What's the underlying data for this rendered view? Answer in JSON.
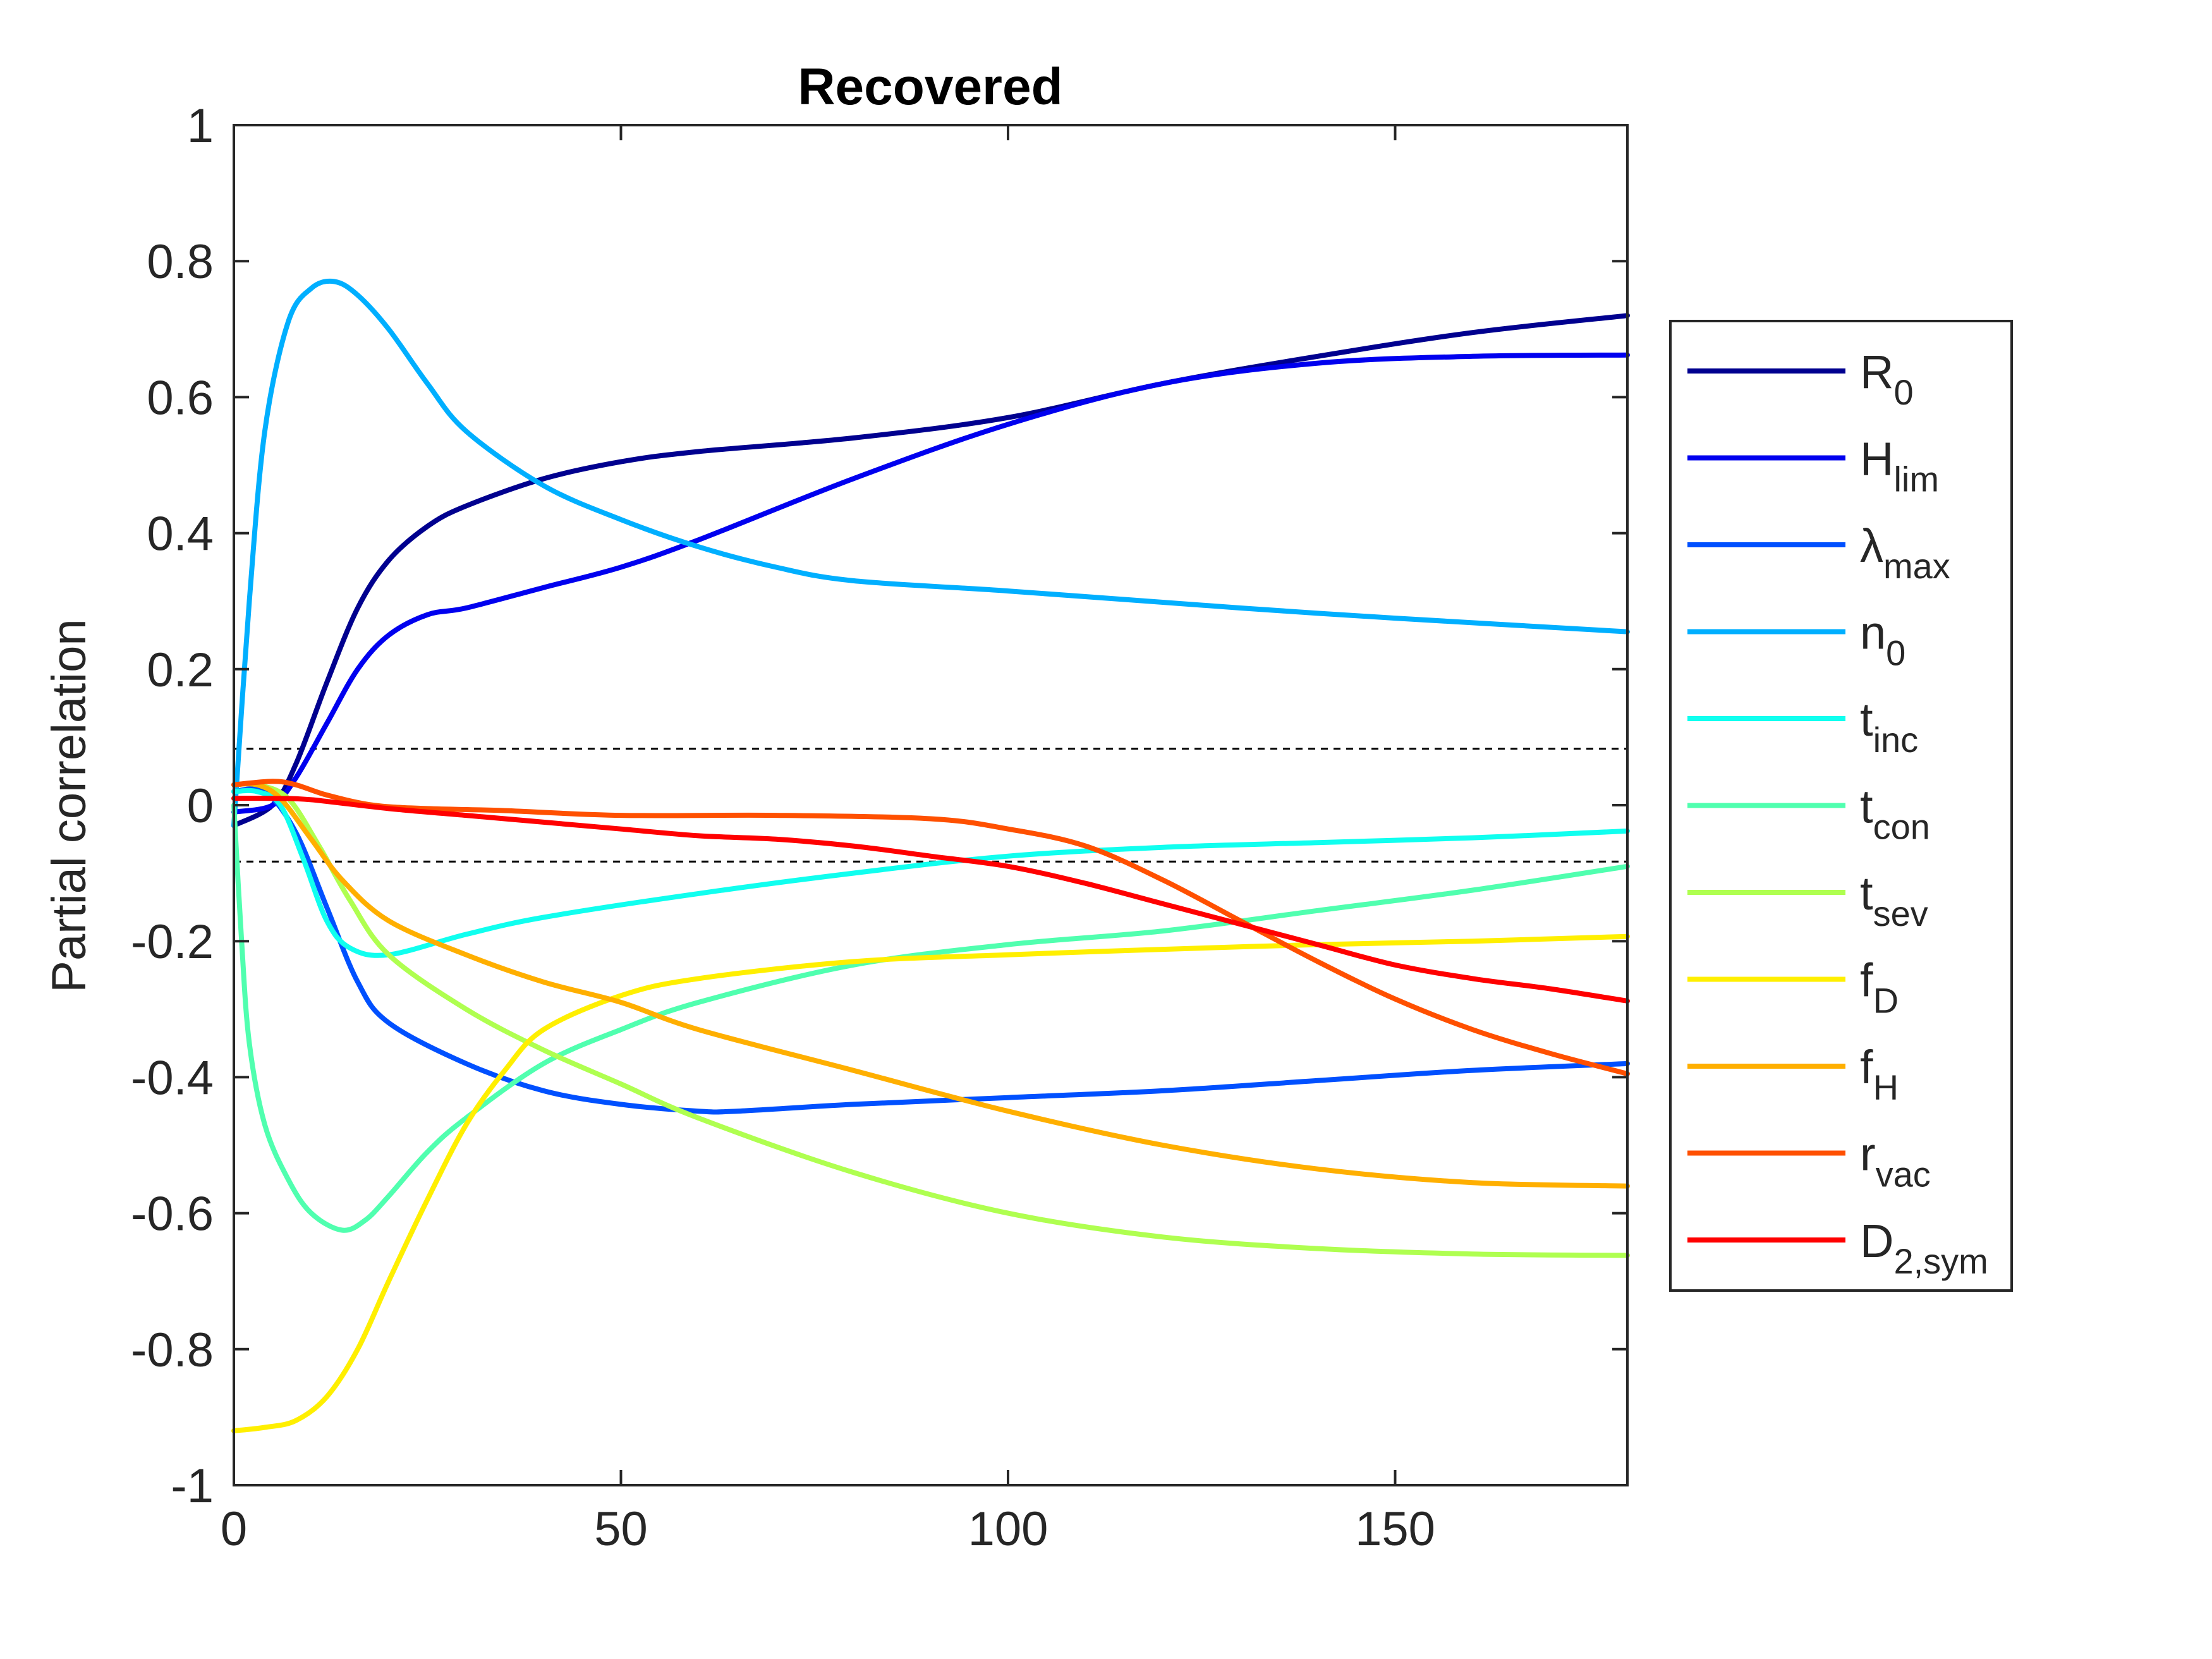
{
  "chart_data": {
    "type": "line",
    "title": "Recovered",
    "xlabel": "",
    "ylabel": "Partial correlation",
    "xlim": [
      0,
      180
    ],
    "ylim": [
      -1,
      1
    ],
    "xticks": [
      0,
      50,
      100,
      150
    ],
    "xtick_labels": [
      "0",
      "50",
      "100",
      "150"
    ],
    "yticks": [
      1,
      0.8,
      0.6,
      0.4,
      0.2,
      0,
      -0.2,
      -0.4,
      -0.6,
      -0.8,
      -1
    ],
    "ytick_labels": [
      "1",
      "0.8",
      "0.6",
      "0.4",
      "0.2",
      "0",
      "-0.2",
      "-0.4",
      "-0.6",
      "-0.8",
      "-1"
    ],
    "grid": false,
    "legend_position": "outside-right",
    "reference_lines": [
      0.083,
      -0.083
    ],
    "series": [
      {
        "name": "R",
        "sub": "0",
        "color": "#00008F",
        "points": [
          [
            0,
            -0.03
          ],
          [
            5,
            0.0
          ],
          [
            8,
            0.06
          ],
          [
            12,
            0.18
          ],
          [
            16,
            0.29
          ],
          [
            20,
            0.36
          ],
          [
            25,
            0.41
          ],
          [
            30,
            0.44
          ],
          [
            40,
            0.48
          ],
          [
            50,
            0.505
          ],
          [
            60,
            0.52
          ],
          [
            80,
            0.54
          ],
          [
            100,
            0.57
          ],
          [
            120,
            0.62
          ],
          [
            140,
            0.66
          ],
          [
            160,
            0.695
          ],
          [
            180,
            0.72
          ]
        ]
      },
      {
        "name": "H",
        "sub": "lim",
        "color": "#0000EF",
        "points": [
          [
            0,
            -0.01
          ],
          [
            5,
            0.0
          ],
          [
            8,
            0.04
          ],
          [
            12,
            0.12
          ],
          [
            16,
            0.2
          ],
          [
            20,
            0.25
          ],
          [
            25,
            0.28
          ],
          [
            30,
            0.29
          ],
          [
            40,
            0.32
          ],
          [
            50,
            0.35
          ],
          [
            60,
            0.39
          ],
          [
            80,
            0.48
          ],
          [
            100,
            0.56
          ],
          [
            120,
            0.62
          ],
          [
            140,
            0.65
          ],
          [
            160,
            0.66
          ],
          [
            180,
            0.662
          ]
        ]
      },
      {
        "name": "λ",
        "sub": "max",
        "color": "#0050FF",
        "points": [
          [
            0,
            0.02
          ],
          [
            4,
            0.02
          ],
          [
            8,
            -0.04
          ],
          [
            12,
            -0.15
          ],
          [
            16,
            -0.26
          ],
          [
            20,
            -0.32
          ],
          [
            30,
            -0.38
          ],
          [
            40,
            -0.42
          ],
          [
            50,
            -0.44
          ],
          [
            60,
            -0.45
          ],
          [
            65,
            -0.45
          ],
          [
            80,
            -0.44
          ],
          [
            100,
            -0.43
          ],
          [
            120,
            -0.42
          ],
          [
            140,
            -0.405
          ],
          [
            160,
            -0.39
          ],
          [
            180,
            -0.38
          ]
        ]
      },
      {
        "name": "n",
        "sub": "0",
        "color": "#00AFFF",
        "points": [
          [
            0,
            -0.03
          ],
          [
            2,
            0.3
          ],
          [
            4,
            0.55
          ],
          [
            7,
            0.71
          ],
          [
            10,
            0.76
          ],
          [
            13,
            0.77
          ],
          [
            16,
            0.75
          ],
          [
            20,
            0.7
          ],
          [
            25,
            0.62
          ],
          [
            30,
            0.55
          ],
          [
            40,
            0.47
          ],
          [
            50,
            0.42
          ],
          [
            60,
            0.38
          ],
          [
            70,
            0.35
          ],
          [
            80,
            0.33
          ],
          [
            100,
            0.315
          ],
          [
            130,
            0.29
          ],
          [
            150,
            0.275
          ],
          [
            180,
            0.255
          ]
        ]
      },
      {
        "name": "t",
        "sub": "inc",
        "color": "#10FFEF",
        "points": [
          [
            0,
            0.02
          ],
          [
            3,
            0.02
          ],
          [
            6,
            0.0
          ],
          [
            9,
            -0.08
          ],
          [
            12,
            -0.17
          ],
          [
            15,
            -0.21
          ],
          [
            20,
            -0.22
          ],
          [
            30,
            -0.19
          ],
          [
            40,
            -0.165
          ],
          [
            60,
            -0.13
          ],
          [
            80,
            -0.1
          ],
          [
            100,
            -0.075
          ],
          [
            120,
            -0.062
          ],
          [
            140,
            -0.055
          ],
          [
            160,
            -0.048
          ],
          [
            180,
            -0.038
          ]
        ]
      },
      {
        "name": "t",
        "sub": "con",
        "color": "#50FFAF",
        "points": [
          [
            0,
            0.0
          ],
          [
            1,
            -0.2
          ],
          [
            2,
            -0.35
          ],
          [
            4,
            -0.47
          ],
          [
            7,
            -0.55
          ],
          [
            10,
            -0.6
          ],
          [
            14,
            -0.625
          ],
          [
            17,
            -0.61
          ],
          [
            20,
            -0.575
          ],
          [
            25,
            -0.51
          ],
          [
            30,
            -0.46
          ],
          [
            40,
            -0.38
          ],
          [
            50,
            -0.33
          ],
          [
            60,
            -0.29
          ],
          [
            80,
            -0.235
          ],
          [
            100,
            -0.205
          ],
          [
            120,
            -0.185
          ],
          [
            140,
            -0.155
          ],
          [
            160,
            -0.125
          ],
          [
            180,
            -0.09
          ]
        ]
      },
      {
        "name": "t",
        "sub": "sev",
        "color": "#AFFF50",
        "points": [
          [
            0,
            0.03
          ],
          [
            3,
            0.03
          ],
          [
            7,
            0.01
          ],
          [
            11,
            -0.06
          ],
          [
            15,
            -0.14
          ],
          [
            20,
            -0.22
          ],
          [
            30,
            -0.3
          ],
          [
            40,
            -0.36
          ],
          [
            50,
            -0.41
          ],
          [
            60,
            -0.46
          ],
          [
            80,
            -0.54
          ],
          [
            100,
            -0.6
          ],
          [
            120,
            -0.635
          ],
          [
            140,
            -0.652
          ],
          [
            160,
            -0.66
          ],
          [
            180,
            -0.662
          ]
        ]
      },
      {
        "name": "f",
        "sub": "D",
        "color": "#FFEF00",
        "points": [
          [
            0,
            -0.92
          ],
          [
            4,
            -0.915
          ],
          [
            8,
            -0.905
          ],
          [
            12,
            -0.87
          ],
          [
            16,
            -0.8
          ],
          [
            20,
            -0.7
          ],
          [
            25,
            -0.58
          ],
          [
            30,
            -0.47
          ],
          [
            35,
            -0.39
          ],
          [
            40,
            -0.33
          ],
          [
            50,
            -0.28
          ],
          [
            60,
            -0.255
          ],
          [
            80,
            -0.23
          ],
          [
            100,
            -0.22
          ],
          [
            120,
            -0.212
          ],
          [
            140,
            -0.205
          ],
          [
            160,
            -0.2
          ],
          [
            180,
            -0.193
          ]
        ]
      },
      {
        "name": "f",
        "sub": "H",
        "color": "#FFAF00",
        "points": [
          [
            0,
            0.03
          ],
          [
            3,
            0.03
          ],
          [
            6,
            0.01
          ],
          [
            10,
            -0.05
          ],
          [
            14,
            -0.11
          ],
          [
            20,
            -0.17
          ],
          [
            30,
            -0.22
          ],
          [
            40,
            -0.26
          ],
          [
            50,
            -0.29
          ],
          [
            60,
            -0.33
          ],
          [
            80,
            -0.39
          ],
          [
            100,
            -0.45
          ],
          [
            120,
            -0.5
          ],
          [
            140,
            -0.535
          ],
          [
            160,
            -0.555
          ],
          [
            180,
            -0.56
          ]
        ]
      },
      {
        "name": "r",
        "sub": "vac",
        "color": "#FF5000",
        "points": [
          [
            0,
            0.03
          ],
          [
            5,
            0.035
          ],
          [
            8,
            0.03
          ],
          [
            12,
            0.015
          ],
          [
            18,
            0.0
          ],
          [
            25,
            -0.005
          ],
          [
            35,
            -0.008
          ],
          [
            50,
            -0.015
          ],
          [
            70,
            -0.015
          ],
          [
            90,
            -0.02
          ],
          [
            100,
            -0.035
          ],
          [
            110,
            -0.06
          ],
          [
            120,
            -0.11
          ],
          [
            130,
            -0.17
          ],
          [
            140,
            -0.23
          ],
          [
            150,
            -0.285
          ],
          [
            160,
            -0.33
          ],
          [
            170,
            -0.365
          ],
          [
            180,
            -0.395
          ]
        ]
      },
      {
        "name": "D",
        "sub": "2,sym",
        "color": "#FF0000",
        "points": [
          [
            0,
            0.01
          ],
          [
            5,
            0.01
          ],
          [
            10,
            0.008
          ],
          [
            20,
            -0.005
          ],
          [
            30,
            -0.015
          ],
          [
            40,
            -0.025
          ],
          [
            50,
            -0.035
          ],
          [
            60,
            -0.045
          ],
          [
            70,
            -0.05
          ],
          [
            80,
            -0.06
          ],
          [
            90,
            -0.075
          ],
          [
            100,
            -0.09
          ],
          [
            110,
            -0.115
          ],
          [
            120,
            -0.145
          ],
          [
            130,
            -0.175
          ],
          [
            140,
            -0.205
          ],
          [
            150,
            -0.235
          ],
          [
            160,
            -0.255
          ],
          [
            170,
            -0.27
          ],
          [
            180,
            -0.288
          ]
        ]
      }
    ]
  }
}
